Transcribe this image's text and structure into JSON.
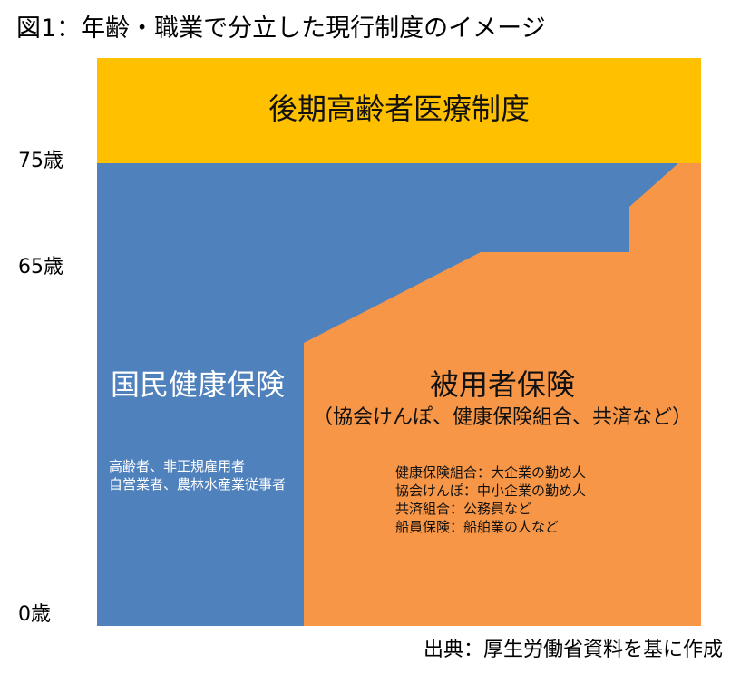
{
  "title": "図1：年齢・職業で分立した現行制度のイメージ",
  "colors": {
    "elderly": "#FFC000",
    "national": "#4F81BD",
    "employee": "#F79646"
  },
  "age_labels": {
    "age75": "75歳",
    "age65": "65歳",
    "age0": "0歳"
  },
  "elderly_system": {
    "title": "後期高齢者医療制度"
  },
  "national_insurance": {
    "title": "国民健康保険",
    "members": [
      "高齢者、非正規雇用者",
      "自営業者、農林水産業従事者"
    ]
  },
  "employee_insurance": {
    "title": "被用者保険",
    "subtitle": "（協会けんぽ、健康保険組合、共済など）",
    "members": [
      "健康保険組合：大企業の勤め人",
      "協会けんぽ：中小企業の勤め人",
      "共済組合：公務員など",
      "船員保険：船舶業の人など"
    ]
  },
  "source": "出典：厚生労働省資料を基に作成"
}
